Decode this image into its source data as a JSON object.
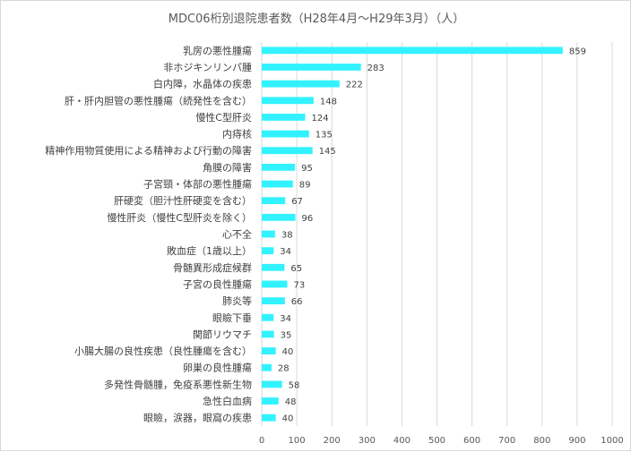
{
  "chart_data": {
    "type": "bar",
    "orientation": "horizontal",
    "title": "MDC06桁別退院患者数（H28年4月～H29年3月）（人）",
    "categories": [
      "乳房の悪性腫瘍",
      "非ホジキンリンパ腫",
      "白内障，水晶体の疾患",
      "肝・肝内胆管の悪性腫瘍（続発性を含む）",
      "慢性C型肝炎",
      "内痔核",
      "精神作用物質使用による精神および行動の障害",
      "角膜の障害",
      "子宮頸・体部の悪性腫瘍",
      "肝硬変（胆汁性肝硬変を含む）",
      "慢性肝炎（慢性C型肝炎を除く）",
      "心不全",
      "敗血症（1歳以上）",
      "骨髄異形成症候群",
      "子宮の良性腫瘍",
      "肺炎等",
      "眼瞼下垂",
      "関節リウマチ",
      "小腸大腸の良性疾患（良性腫瘍を含む）",
      "卵巣の良性腫瘍",
      "多発性骨髄腫，免疫系悪性新生物",
      "急性白血病",
      "眼瞼，涙器，眼窩の疾患"
    ],
    "values": [
      859,
      283,
      222,
      148,
      124,
      135,
      145,
      95,
      89,
      67,
      96,
      38,
      34,
      65,
      73,
      66,
      34,
      35,
      40,
      28,
      58,
      48,
      40
    ],
    "value_labels": [
      "859",
      "283",
      "222",
      "148",
      "124",
      "135",
      "145",
      "95",
      "89",
      "67",
      "96",
      "38",
      "34",
      "65",
      "73",
      "66",
      "34",
      "35",
      "40",
      "28",
      "58",
      "48",
      "40"
    ],
    "xlim": [
      0,
      1000
    ],
    "xticks": [
      0,
      100,
      200,
      300,
      400,
      500,
      600,
      700,
      800,
      900,
      1000
    ],
    "xtick_labels": [
      "0",
      "100",
      "200",
      "300",
      "400",
      "500",
      "600",
      "700",
      "800",
      "900",
      "1000"
    ],
    "grid": "vertical",
    "legend": "none",
    "bar_color": "#33F2FF",
    "grid_color": "#D9D9D9"
  }
}
